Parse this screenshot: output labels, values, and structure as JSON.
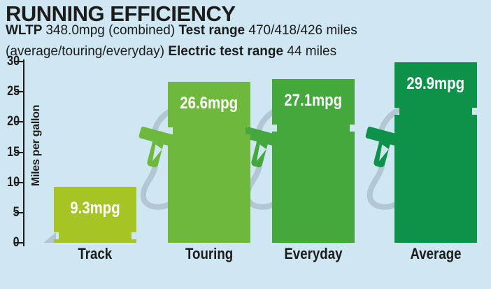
{
  "header": {
    "title": "RUNNING EFFICIENCY",
    "subtitle_lines": [
      [
        {
          "text": "WLTP ",
          "bold": true
        },
        {
          "text": "348.0mpg (combined) ",
          "bold": false
        },
        {
          "text": "Test range ",
          "bold": true
        },
        {
          "text": "470/418/426 miles",
          "bold": false
        }
      ],
      [
        {
          "text": "(average/touring/everyday) ",
          "bold": false
        },
        {
          "text": "Electric test range ",
          "bold": true
        },
        {
          "text": "44 miles",
          "bold": false
        }
      ]
    ]
  },
  "chart_data": {
    "type": "bar",
    "title": "RUNNING EFFICIENCY",
    "categories": [
      "Track",
      "Touring",
      "Everyday",
      "Average"
    ],
    "values": [
      9.3,
      26.6,
      27.1,
      29.9
    ],
    "bar_labels": [
      "9.3mpg",
      "26.6mpg",
      "27.1mpg",
      "29.9mpg"
    ],
    "bar_colors": [
      "#a5c525",
      "#6fb83e",
      "#45a83c",
      "#0e9249"
    ],
    "ylabel": "Miles per gallon",
    "yticks": [
      0,
      5,
      10,
      15,
      20,
      25,
      30
    ],
    "ylim": [
      0,
      30
    ],
    "grid": false,
    "legend": null,
    "icon": "fuel-pump-nozzle"
  },
  "style": {
    "background": "#cfe6f3",
    "text_color": "#1c1c1a",
    "hose_color": "#b2c6d3",
    "value_label_color": "#ffffff"
  }
}
